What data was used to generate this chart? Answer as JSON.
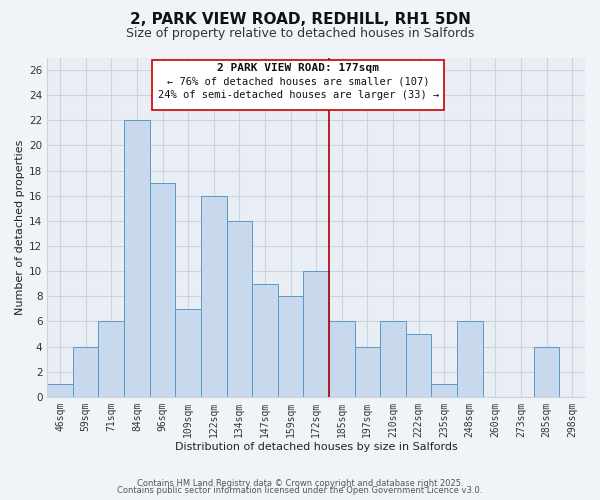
{
  "title": "2, PARK VIEW ROAD, REDHILL, RH1 5DN",
  "subtitle": "Size of property relative to detached houses in Salfords",
  "xlabel": "Distribution of detached houses by size in Salfords",
  "ylabel": "Number of detached properties",
  "bin_labels": [
    "46sqm",
    "59sqm",
    "71sqm",
    "84sqm",
    "96sqm",
    "109sqm",
    "122sqm",
    "134sqm",
    "147sqm",
    "159sqm",
    "172sqm",
    "185sqm",
    "197sqm",
    "210sqm",
    "222sqm",
    "235sqm",
    "248sqm",
    "260sqm",
    "273sqm",
    "285sqm",
    "298sqm"
  ],
  "bar_heights": [
    1,
    4,
    6,
    22,
    17,
    7,
    16,
    14,
    9,
    8,
    10,
    6,
    4,
    6,
    5,
    1,
    6,
    0,
    0,
    4,
    0
  ],
  "bar_color": "#c8d8ed",
  "bar_edge_color": "#5a9ac8",
  "vline_x_idx": 10.5,
  "vline_color": "#aa0000",
  "annotation_title": "2 PARK VIEW ROAD: 177sqm",
  "annotation_line1": "← 76% of detached houses are smaller (107)",
  "annotation_line2": "24% of semi-detached houses are larger (33) →",
  "annotation_box_color": "#ffffff",
  "annotation_box_edge": "#cc0000",
  "ylim": [
    0,
    27
  ],
  "yticks": [
    0,
    2,
    4,
    6,
    8,
    10,
    12,
    14,
    16,
    18,
    20,
    22,
    24,
    26
  ],
  "footer1": "Contains HM Land Registry data © Crown copyright and database right 2025.",
  "footer2": "Contains public sector information licensed under the Open Government Licence v3.0.",
  "bg_color": "#f0f4f8",
  "plot_bg_color": "#e8eef4",
  "grid_color": "#c8d4e0",
  "title_fontsize": 11,
  "subtitle_fontsize": 9,
  "tick_fontsize": 7,
  "axis_label_fontsize": 8,
  "footer_fontsize": 6
}
